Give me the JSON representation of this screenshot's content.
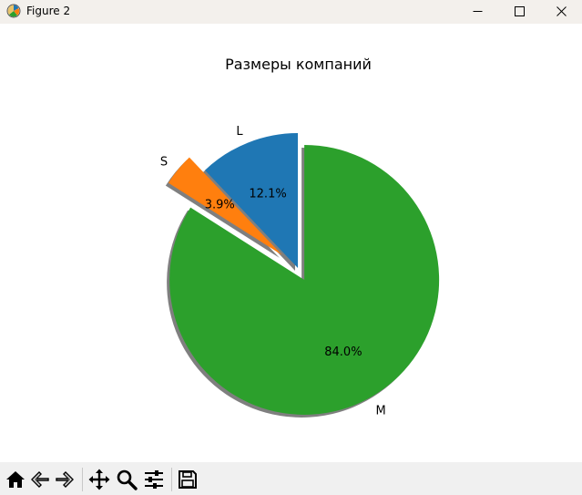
{
  "window": {
    "title": "Figure 2",
    "buttons": {
      "minimize": "minimize-icon",
      "maximize": "maximize-icon",
      "close": "close-icon"
    }
  },
  "chart_data": {
    "type": "pie",
    "title": "Размеры компаний",
    "categories": [
      "L",
      "S",
      "M"
    ],
    "values": [
      12.1,
      3.9,
      84.0
    ],
    "percent_labels": [
      "12.1%",
      "3.9%",
      "84.0%"
    ],
    "explode": [
      0.0,
      0.15,
      0.1
    ],
    "colors": [
      "#1f77b4",
      "#ff7f0e",
      "#2ca02c"
    ],
    "start_angle_deg": 90,
    "direction": "counterclockwise",
    "shadow": true
  },
  "toolbar": {
    "tools": [
      {
        "name": "home",
        "icon": "home-icon"
      },
      {
        "name": "back",
        "icon": "back-arrow-icon"
      },
      {
        "name": "forward",
        "icon": "forward-arrow-icon"
      },
      {
        "name": "pan",
        "icon": "move-icon"
      },
      {
        "name": "zoom",
        "icon": "zoom-icon"
      },
      {
        "name": "configure",
        "icon": "sliders-icon"
      },
      {
        "name": "save",
        "icon": "save-icon"
      }
    ]
  }
}
